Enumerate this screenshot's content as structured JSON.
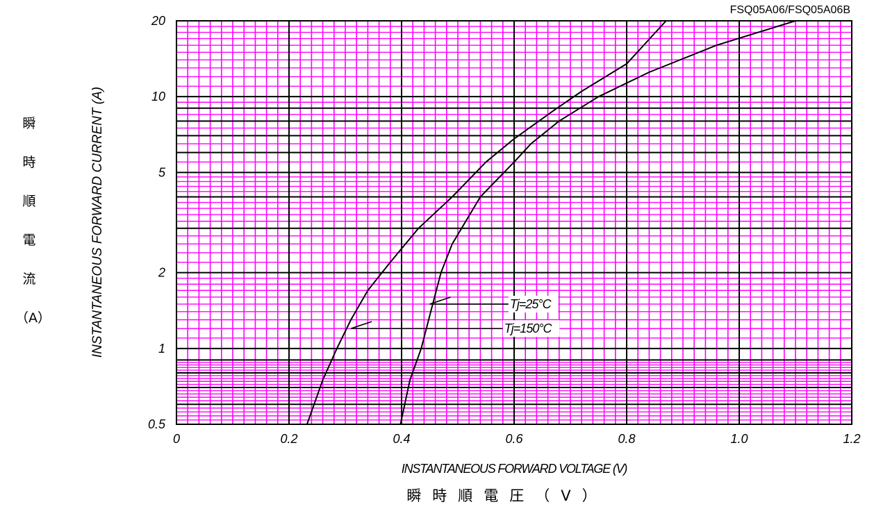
{
  "part_number": "FSQ05A06/FSQ05A06B",
  "axis_titles": {
    "y_en": "INSTANTANEOUS FORWARD CURRENT (A)",
    "y_cjk": [
      "瞬",
      "時",
      "順",
      "電",
      "流",
      "（A）"
    ],
    "x_en": "INSTANTANEOUS FORWARD VOLTAGE (V)",
    "x_cjk": "瞬時順電圧（V）"
  },
  "colors": {
    "minor_grid": "#ff00ff",
    "major_grid": "#000000",
    "curve": "#000000"
  },
  "chart_data": {
    "type": "line",
    "title": "",
    "xlabel": "INSTANTANEOUS FORWARD VOLTAGE (V)",
    "ylabel": "INSTANTANEOUS FORWARD CURRENT (A)",
    "xlim": [
      0,
      1.2
    ],
    "ylim": [
      0.5,
      20
    ],
    "y_scale": "log",
    "grid": true,
    "x_ticks": [
      {
        "value": 0,
        "label": "0"
      },
      {
        "value": 0.2,
        "label": "0.2"
      },
      {
        "value": 0.4,
        "label": "0.4"
      },
      {
        "value": 0.6,
        "label": "0.6"
      },
      {
        "value": 0.8,
        "label": "0.8"
      },
      {
        "value": 1.0,
        "label": "1.0"
      },
      {
        "value": 1.2,
        "label": "1.2"
      }
    ],
    "y_ticks": [
      {
        "value": 0.5,
        "label": "0.5"
      },
      {
        "value": 1,
        "label": "1"
      },
      {
        "value": 2,
        "label": "2"
      },
      {
        "value": 5,
        "label": "5"
      },
      {
        "value": 10,
        "label": "10"
      },
      {
        "value": 20,
        "label": "20"
      }
    ],
    "series": [
      {
        "name": "Tj=25°C",
        "points": [
          [
            0.398,
            0.5
          ],
          [
            0.415,
            0.75
          ],
          [
            0.435,
            1.0
          ],
          [
            0.45,
            1.35
          ],
          [
            0.47,
            2.0
          ],
          [
            0.49,
            2.6
          ],
          [
            0.54,
            4.0
          ],
          [
            0.6,
            5.5
          ],
          [
            0.63,
            6.5
          ],
          [
            0.68,
            8.0
          ],
          [
            0.75,
            10.0
          ],
          [
            0.84,
            12.5
          ],
          [
            0.96,
            16.0
          ],
          [
            1.1,
            20.0
          ]
        ],
        "annotation": {
          "label": "Tj=25°C",
          "x": 0.45,
          "y": 1.5,
          "label_x": 0.59
        }
      },
      {
        "name": "Tj=150°C",
        "points": [
          [
            0.232,
            0.5
          ],
          [
            0.26,
            0.75
          ],
          [
            0.285,
            1.0
          ],
          [
            0.31,
            1.3
          ],
          [
            0.34,
            1.7
          ],
          [
            0.38,
            2.2
          ],
          [
            0.43,
            3.0
          ],
          [
            0.49,
            4.0
          ],
          [
            0.55,
            5.5
          ],
          [
            0.6,
            6.8
          ],
          [
            0.67,
            8.8
          ],
          [
            0.72,
            10.5
          ],
          [
            0.8,
            13.5
          ],
          [
            0.87,
            20.0
          ]
        ],
        "annotation": {
          "label": "Tj=150°C",
          "x": 0.31,
          "y": 1.2,
          "label_x": 0.58
        }
      }
    ]
  }
}
